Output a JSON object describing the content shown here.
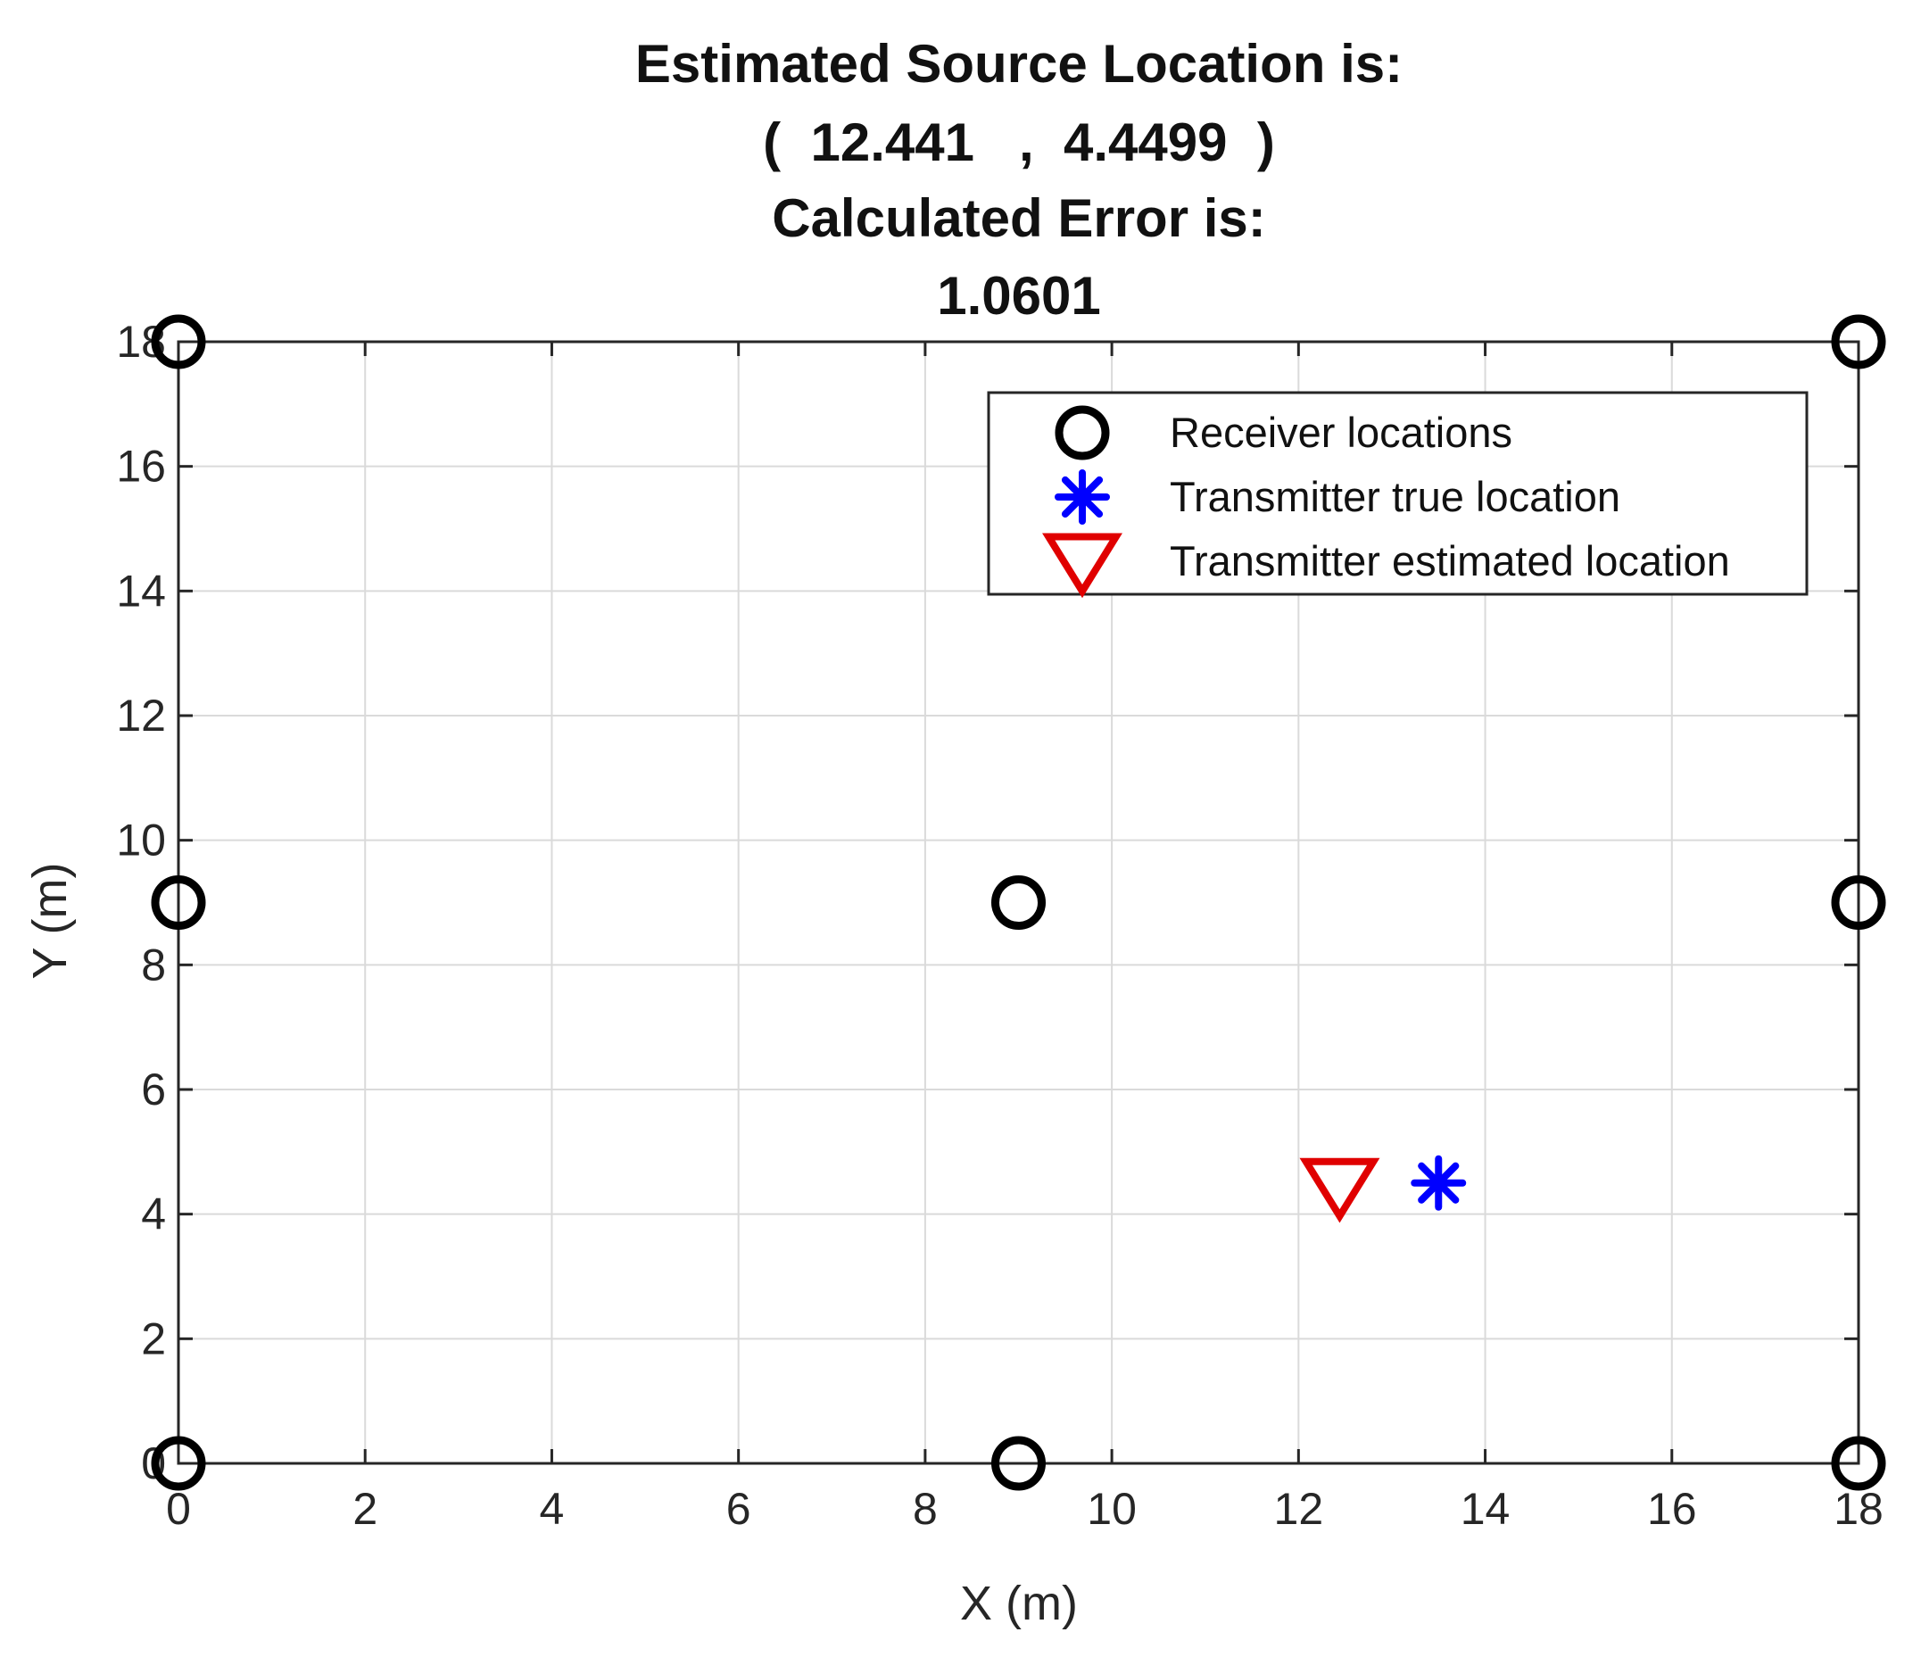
{
  "chart_data": {
    "type": "scatter",
    "title_lines": [
      "Estimated Source Location is:",
      "(  12.441   ,  4.4499  )",
      "Calculated Error is:",
      "1.0601"
    ],
    "xlabel": "X (m)",
    "ylabel": "Y (m)",
    "xlim": [
      0,
      18
    ],
    "ylim": [
      0,
      18
    ],
    "xticks": [
      0,
      2,
      4,
      6,
      8,
      10,
      12,
      14,
      16,
      18
    ],
    "yticks": [
      0,
      2,
      4,
      6,
      8,
      10,
      12,
      14,
      16,
      18
    ],
    "grid": true,
    "legend_position": "top-right",
    "series": [
      {
        "name": "Receiver locations",
        "marker": "circle-open",
        "color": "#000000",
        "points": [
          [
            0,
            0
          ],
          [
            9,
            0
          ],
          [
            18,
            0
          ],
          [
            0,
            9
          ],
          [
            9,
            9
          ],
          [
            18,
            9
          ],
          [
            0,
            18
          ],
          [
            18,
            18
          ]
        ]
      },
      {
        "name": "Transmitter true location",
        "marker": "asterisk",
        "color": "#0000ff",
        "points": [
          [
            13.5,
            4.5
          ]
        ]
      },
      {
        "name": "Transmitter estimated location",
        "marker": "triangle-down-open",
        "color": "#e00000",
        "points": [
          [
            12.441,
            4.4499
          ]
        ]
      }
    ]
  }
}
